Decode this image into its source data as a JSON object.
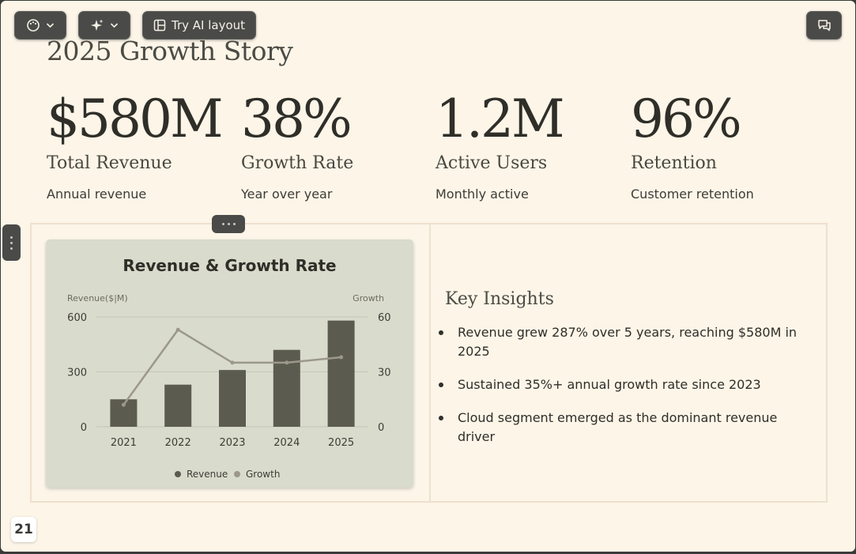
{
  "toolbar": {
    "theme_icon": "palette-icon",
    "ai_icon": "sparkle-icon",
    "try_ai_label": "Try AI layout",
    "comments_icon": "comments-icon"
  },
  "slide": {
    "title": "2025 Growth Story",
    "stats": [
      {
        "value": "$580M",
        "label": "Total Revenue",
        "desc": "Annual revenue"
      },
      {
        "value": "38%",
        "label": "Growth Rate",
        "desc": "Year over year"
      },
      {
        "value": "1.2M",
        "label": "Active Users",
        "desc": "Monthly active"
      },
      {
        "value": "96%",
        "label": "Retention",
        "desc": "Customer retention"
      }
    ],
    "insights": {
      "title": "Key Insights",
      "items": [
        "Revenue grew 287% over 5 years, reaching $580M in 2025",
        "Sustained 35%+ annual growth rate since 2023",
        "Cloud segment emerged as the dominant revenue driver"
      ]
    },
    "page_number": "21"
  },
  "chart_data": {
    "type": "bar",
    "title": "Revenue & Growth Rate",
    "categories": [
      "2021",
      "2022",
      "2023",
      "2024",
      "2025"
    ],
    "ylabel": "Revenue($|M)",
    "y2label": "Growth",
    "ylim": [
      0,
      600
    ],
    "y2lim": [
      0,
      60
    ],
    "yticks": [
      "0",
      "300",
      "600"
    ],
    "y2ticks": [
      "0",
      "30",
      "60"
    ],
    "series": [
      {
        "name": "Revenue",
        "type": "bar",
        "axis": "left",
        "values": [
          150,
          230,
          310,
          420,
          580
        ],
        "color": "#5c5b50"
      },
      {
        "name": "Growth",
        "type": "line",
        "axis": "right",
        "values": [
          12,
          53,
          35,
          35,
          38
        ],
        "color": "#9b988b"
      }
    ],
    "legend": "bottom",
    "grid": true
  },
  "colors": {
    "background": "#fcf5e8",
    "toolbar": "#4a4a48",
    "chart_bg": "#d9dbcc",
    "text": "#2f2e28"
  }
}
